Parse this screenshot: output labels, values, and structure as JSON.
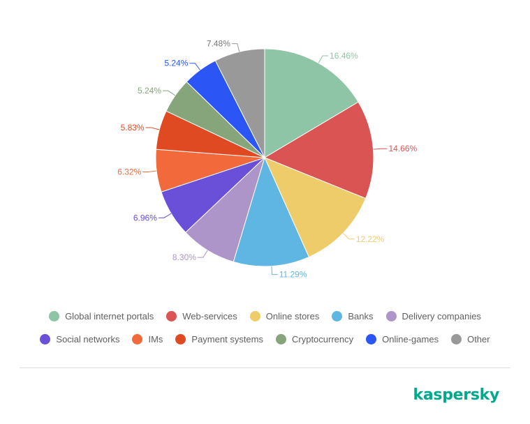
{
  "chart_data": {
    "type": "pie",
    "start_angle_deg": 0,
    "direction": "clockwise",
    "slices": [
      {
        "name": "Global internet portals",
        "value": 16.46,
        "label": "16.46%",
        "color": "#8ec5a6"
      },
      {
        "name": "Web-services",
        "value": 14.66,
        "label": "14.66%",
        "color": "#db5454"
      },
      {
        "name": "Online stores",
        "value": 12.22,
        "label": "12.22%",
        "color": "#efcc6a"
      },
      {
        "name": "Banks",
        "value": 11.29,
        "label": "11.29%",
        "color": "#5fb6e3"
      },
      {
        "name": "Delivery companies",
        "value": 8.3,
        "label": "8.30%",
        "color": "#ad95c9"
      },
      {
        "name": "Social networks",
        "value": 6.96,
        "label": "6.96%",
        "color": "#6a4fd8"
      },
      {
        "name": "IMs",
        "value": 6.32,
        "label": "6.32%",
        "color": "#f26a3c"
      },
      {
        "name": "Payment systems",
        "value": 5.83,
        "label": "5.83%",
        "color": "#e04a22"
      },
      {
        "name": "Cryptocurrency",
        "value": 5.24,
        "label": "5.24%",
        "color": "#86a57a"
      },
      {
        "name": "Online-games",
        "value": 5.24,
        "label": "5.24%",
        "color": "#2b56f5"
      },
      {
        "name": "Other",
        "value": 7.48,
        "label": "7.48%",
        "color": "#999999"
      }
    ],
    "legend_placement": "bottom"
  },
  "legend": {
    "row1": [
      "Global internet portals",
      "Web-services",
      "Online stores",
      "Banks",
      "Delivery companies"
    ],
    "row2": [
      "Social networks",
      "IMs",
      "Payment systems",
      "Cryptocurrency",
      "Online-games",
      "Other"
    ]
  },
  "brand": {
    "logo_text": "kaspersky",
    "logo_color": "#00a88e"
  }
}
